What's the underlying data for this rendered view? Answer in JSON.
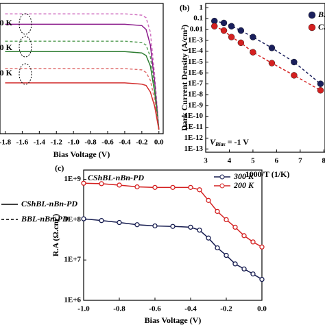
{
  "chart_data": [
    {
      "type": "line",
      "xlabel": "Bias Voltage (V)",
      "x": [
        -1.8,
        -1.6,
        -1.4,
        -1.2,
        -1.0,
        -0.8,
        -0.6,
        -0.4,
        -0.2,
        -0.15,
        -0.1,
        -0.05,
        0
      ],
      "xlim": [
        -1.86,
        0.05
      ],
      "ylim": [
        0,
        10
      ],
      "xticks": [
        -1.8,
        -1.6,
        -1.4,
        -1.2,
        {
          "value": -1,
          "label": "-1.0"
        },
        -0.8,
        -0.6,
        -0.4,
        -0.2,
        {
          "value": 0,
          "label": "0.0"
        }
      ],
      "series": [
        {
          "color": "#d070c0",
          "dashed": true,
          "values": [
            9.2,
            9.2,
            9.2,
            9.2,
            9.2,
            9.2,
            9.2,
            9.2,
            9.1,
            8.9,
            7.8,
            4.5,
            0.3
          ]
        },
        {
          "color": "#8b1a8b",
          "dashed": false,
          "values": [
            8.4,
            8.4,
            8.4,
            8.4,
            8.4,
            8.4,
            8.4,
            8.4,
            8.3,
            8.0,
            6.8,
            4.0,
            0.3
          ]
        },
        {
          "color": "#5aa05a",
          "dashed": true,
          "values": [
            7.1,
            7.1,
            7.1,
            7.1,
            7.1,
            7.1,
            7.1,
            7.1,
            7.0,
            6.8,
            5.9,
            3.6,
            0.3
          ]
        },
        {
          "color": "#2e7d32",
          "dashed": false,
          "values": [
            6.3,
            6.3,
            6.3,
            6.3,
            6.3,
            6.3,
            6.3,
            6.3,
            6.2,
            6.0,
            5.2,
            3.2,
            0.3
          ]
        },
        {
          "color": "#e07070",
          "dashed": true,
          "values": [
            5.0,
            5.0,
            5.0,
            5.0,
            5.0,
            5.0,
            5.0,
            5.0,
            4.9,
            4.7,
            4.1,
            2.6,
            0.3
          ]
        },
        {
          "color": "#d32f2f",
          "dashed": false,
          "values": [
            3.9,
            3.9,
            3.9,
            3.9,
            3.9,
            3.9,
            3.9,
            3.9,
            3.8,
            3.7,
            3.2,
            2.1,
            0.3
          ]
        }
      ],
      "legend": [
        {
          "label": "CShBL-nBn-PD",
          "dashed": false
        },
        {
          "label": "BBL-nBn-PD",
          "dashed": true
        }
      ],
      "annotations": [
        "0 K",
        "0 K",
        "0 K"
      ]
    },
    {
      "type": "scatter",
      "panel": "(b)",
      "xlabel": "1000/T (1/K)",
      "ylabel": "Dark Current Density (A/cm²)",
      "log_y": true,
      "xlim": [
        3,
        8.05
      ],
      "ylim": [
        5e-14,
        2.5
      ],
      "xticks": [
        3,
        4,
        5,
        6,
        7,
        8
      ],
      "yticks": [
        1,
        0.1,
        0.01,
        {
          "value": 0.001,
          "label": "1E-3"
        },
        {
          "value": 0.0001,
          "label": "1E-4"
        },
        {
          "value": 1e-05,
          "label": "1E-5"
        },
        {
          "value": 1e-06,
          "label": "1E-6"
        },
        {
          "value": 1e-07,
          "label": "1E-7"
        },
        {
          "value": 1e-08,
          "label": "1E-8"
        },
        {
          "value": 1e-09,
          "label": "1E-9"
        },
        {
          "value": 1e-10,
          "label": "1E-10"
        },
        {
          "value": 1e-11,
          "label": "1E-11"
        },
        {
          "value": 1e-12,
          "label": "1E-12"
        },
        {
          "value": 1e-13,
          "label": "1E-13"
        }
      ],
      "x": [
        3.37,
        3.77,
        4.09,
        4.49,
        5.0,
        5.8,
        6.74,
        7.86
      ],
      "series": [
        {
          "name": "B.",
          "color": "#1a1f5c",
          "dashed": true,
          "values": [
            0.06,
            0.04,
            0.02,
            0.008,
            0.002,
            0.0002,
            1e-05,
            1e-07
          ]
        },
        {
          "name": "C.",
          "color": "#d42020",
          "dashed": true,
          "values": [
            0.02,
            0.008,
            0.002,
            0.0006,
            8e-05,
            8e-06,
            6e-07,
            2.5e-08
          ]
        }
      ],
      "annotation": {
        "text": "V",
        "sub": "Bias",
        "rest": " = -1 V"
      }
    },
    {
      "type": "line",
      "panel": "(c)",
      "title": "CShBL-nBn-PD",
      "xlabel": "Bias Voltage (V)",
      "ylabel": "R.A (Ω.cm²)",
      "log_y": true,
      "xlim": [
        -1,
        0
      ],
      "ylim": [
        1000000.0,
        1700000000.0
      ],
      "xticks": [
        {
          "value": -1,
          "label": "-1.0"
        },
        -0.8,
        -0.6,
        -0.4,
        -0.2,
        {
          "value": 0,
          "label": "0.0"
        }
      ],
      "yticks": [
        {
          "value": 1000000.0,
          "label": "1E+6"
        },
        {
          "value": 10000000.0,
          "label": "1E+7"
        },
        {
          "value": 100000000.0,
          "label": "1E+8"
        },
        {
          "value": 1000000000.0,
          "label": "1E+9"
        }
      ],
      "x": [
        -1,
        -0.9,
        -0.8,
        -0.7,
        -0.6,
        -0.5,
        -0.4,
        -0.35,
        -0.3,
        -0.25,
        -0.2,
        -0.15,
        -0.1,
        -0.05,
        0
      ],
      "series": [
        {
          "name": "300 K",
          "color": "#141a4e",
          "values": [
            105000000,
            95000000,
            85000000,
            75000000,
            70000000,
            68000000,
            65000000,
            55000000,
            35000000,
            20000000,
            13000000,
            8000000,
            6000000,
            4500000,
            3300000
          ]
        },
        {
          "name": "200 K",
          "color": "#d42020",
          "values": [
            800000000,
            780000000,
            720000000,
            650000000,
            630000000,
            630000000,
            630000000,
            550000000,
            300000000,
            160000000,
            100000000,
            65000000,
            40000000,
            28000000,
            21000000
          ]
        }
      ],
      "markers": true
    }
  ]
}
